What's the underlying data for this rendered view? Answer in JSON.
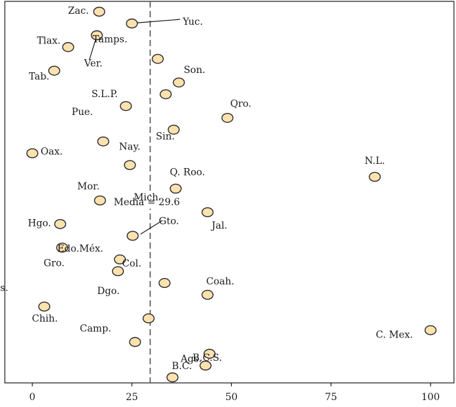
{
  "chart_data": {
    "type": "scatter",
    "x_axis": {
      "range": [
        -7,
        106
      ],
      "ticks": [
        0,
        25,
        50,
        75,
        100
      ]
    },
    "mean": {
      "value": 29.6,
      "label": "Media = 29.6"
    },
    "points": [
      {
        "label": "Zac.",
        "x": 16.8,
        "row": 1
      },
      {
        "label": "Yuc.",
        "x": 25.0,
        "row": 2
      },
      {
        "label": "Tamps.",
        "x": 16.2,
        "row": 3
      },
      {
        "label": "Tlax.",
        "x": 9.0,
        "row": 4
      },
      {
        "label": "Ver.",
        "x": 31.5,
        "row": 5
      },
      {
        "label": "Tab.",
        "x": 5.5,
        "row": 6
      },
      {
        "label": "Son.",
        "x": 36.8,
        "row": 7
      },
      {
        "label": "S.L.P.",
        "x": 33.5,
        "row": 8
      },
      {
        "label": "Pue.",
        "x": 23.5,
        "row": 9
      },
      {
        "label": "Qro.",
        "x": 49.0,
        "row": 10
      },
      {
        "label": "Sin.",
        "x": 35.5,
        "row": 11
      },
      {
        "label": "Nay.",
        "x": 17.8,
        "row": 12
      },
      {
        "label": "Oax.",
        "x": 0.0,
        "row": 13
      },
      {
        "label": "Q. Roo.",
        "x": 24.5,
        "row": 14
      },
      {
        "label": "N.L.",
        "x": 86.0,
        "row": 15
      },
      {
        "label": "Mich.",
        "x": 36.0,
        "row": 16
      },
      {
        "label": "Mor.",
        "x": 17.0,
        "row": 17
      },
      {
        "label": "Jal.",
        "x": 44.0,
        "row": 18
      },
      {
        "label": "Hgo.",
        "x": 7.0,
        "row": 19
      },
      {
        "label": "Gto.",
        "x": 25.2,
        "row": 20
      },
      {
        "label": "Edo.Méx.",
        "x": 7.5,
        "row": 21
      },
      {
        "label": "Gro.",
        "x": 22.0,
        "row": 22
      },
      {
        "label": "Col.",
        "x": 21.5,
        "row": 23
      },
      {
        "label": "Dgo.",
        "x": 33.2,
        "row": 24
      },
      {
        "label": "Coah.",
        "x": 44.0,
        "row": 25
      },
      {
        "label": "Chih.",
        "x": 3.0,
        "row": 26
      },
      {
        "label": "Chis.",
        "x": 29.2,
        "row": 27
      },
      {
        "label": "Camp.",
        "x": 100.0,
        "row": 28
      },
      {
        "label": "C. Mex.",
        "x": 25.8,
        "row": 29
      },
      {
        "label": "Ags.",
        "x": 44.5,
        "row": 30
      },
      {
        "label": "B.C.S.",
        "x": 43.5,
        "row": 31
      },
      {
        "label": "B.C.",
        "x": 35.2,
        "row": 32
      }
    ]
  }
}
